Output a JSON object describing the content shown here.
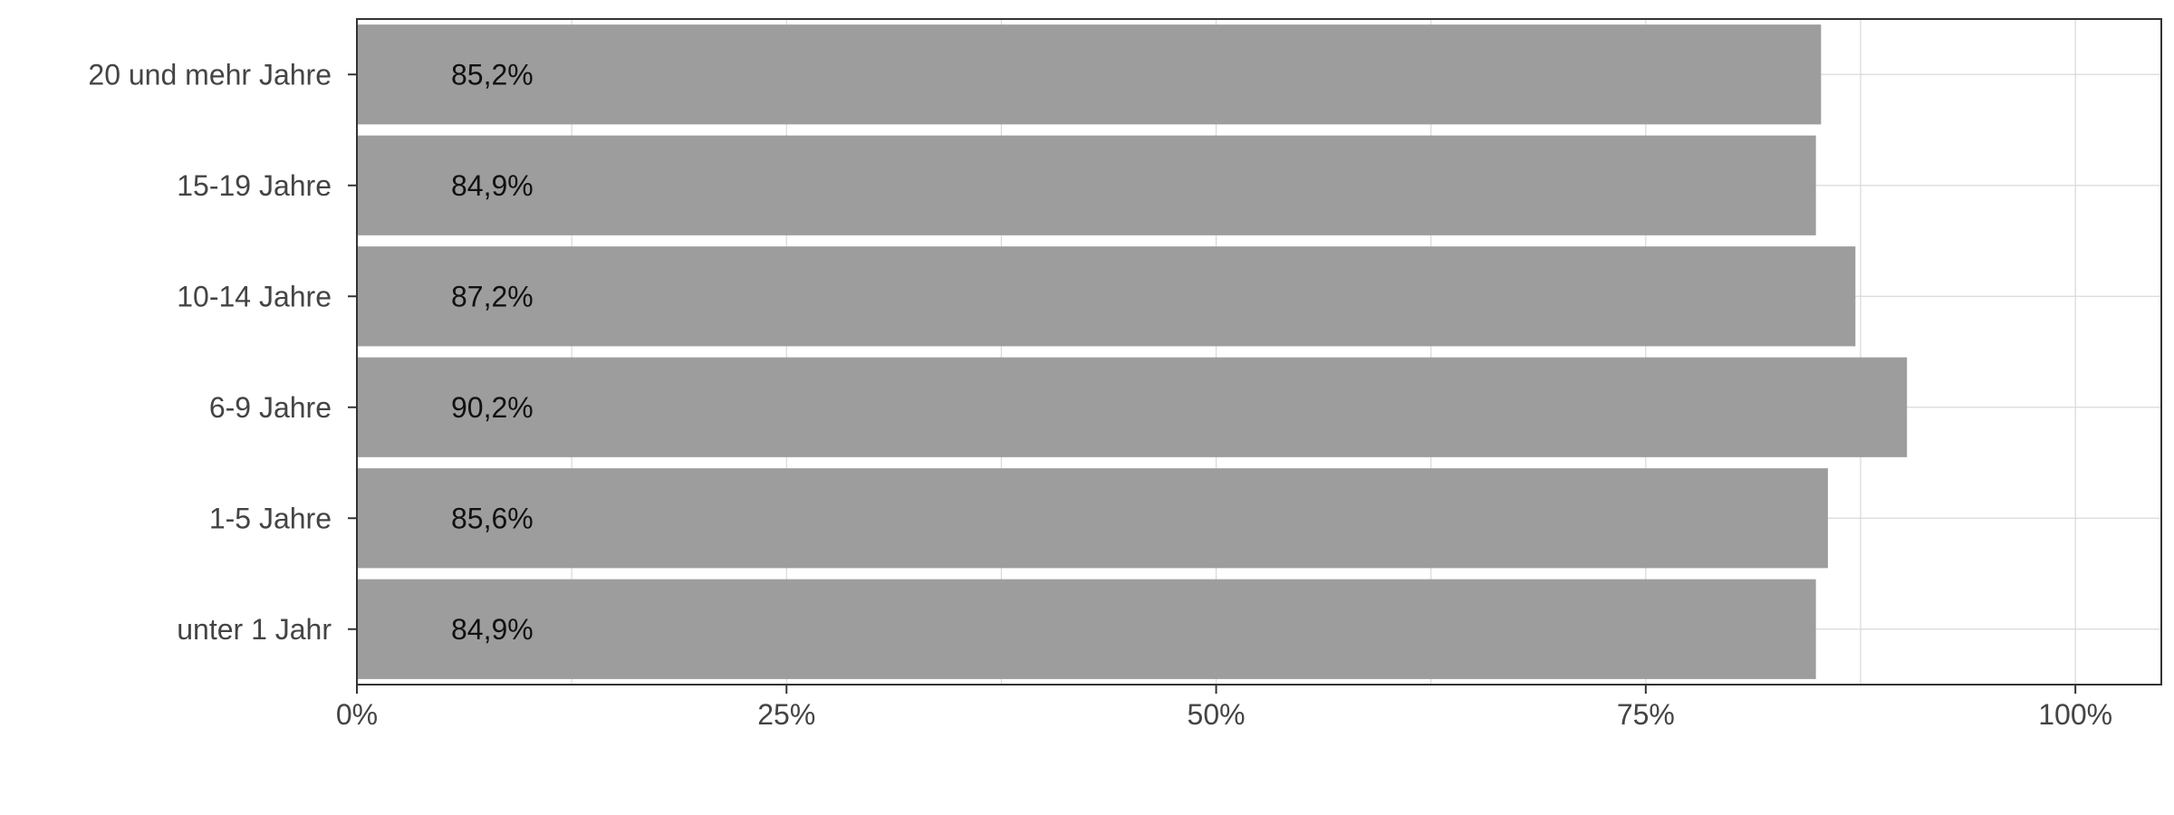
{
  "chart_data": {
    "type": "bar",
    "orientation": "horizontal",
    "categories": [
      "20 und mehr Jahre",
      "15-19 Jahre",
      "10-14 Jahre",
      "6-9 Jahre",
      "1-5 Jahre",
      "unter 1 Jahr"
    ],
    "values": [
      85.2,
      84.9,
      87.2,
      90.2,
      85.6,
      84.9
    ],
    "value_labels": [
      "85,2%",
      "84,9%",
      "87,2%",
      "90,2%",
      "85,6%",
      "84,9%"
    ],
    "x_ticks": [
      0,
      25,
      50,
      75,
      100
    ],
    "x_tick_labels": [
      "0%",
      "25%",
      "50%",
      "75%",
      "100%"
    ],
    "xlim": [
      0,
      105
    ],
    "grid": true,
    "bar_color": "#9b9b9b",
    "title": "",
    "xlabel": "",
    "ylabel": ""
  }
}
